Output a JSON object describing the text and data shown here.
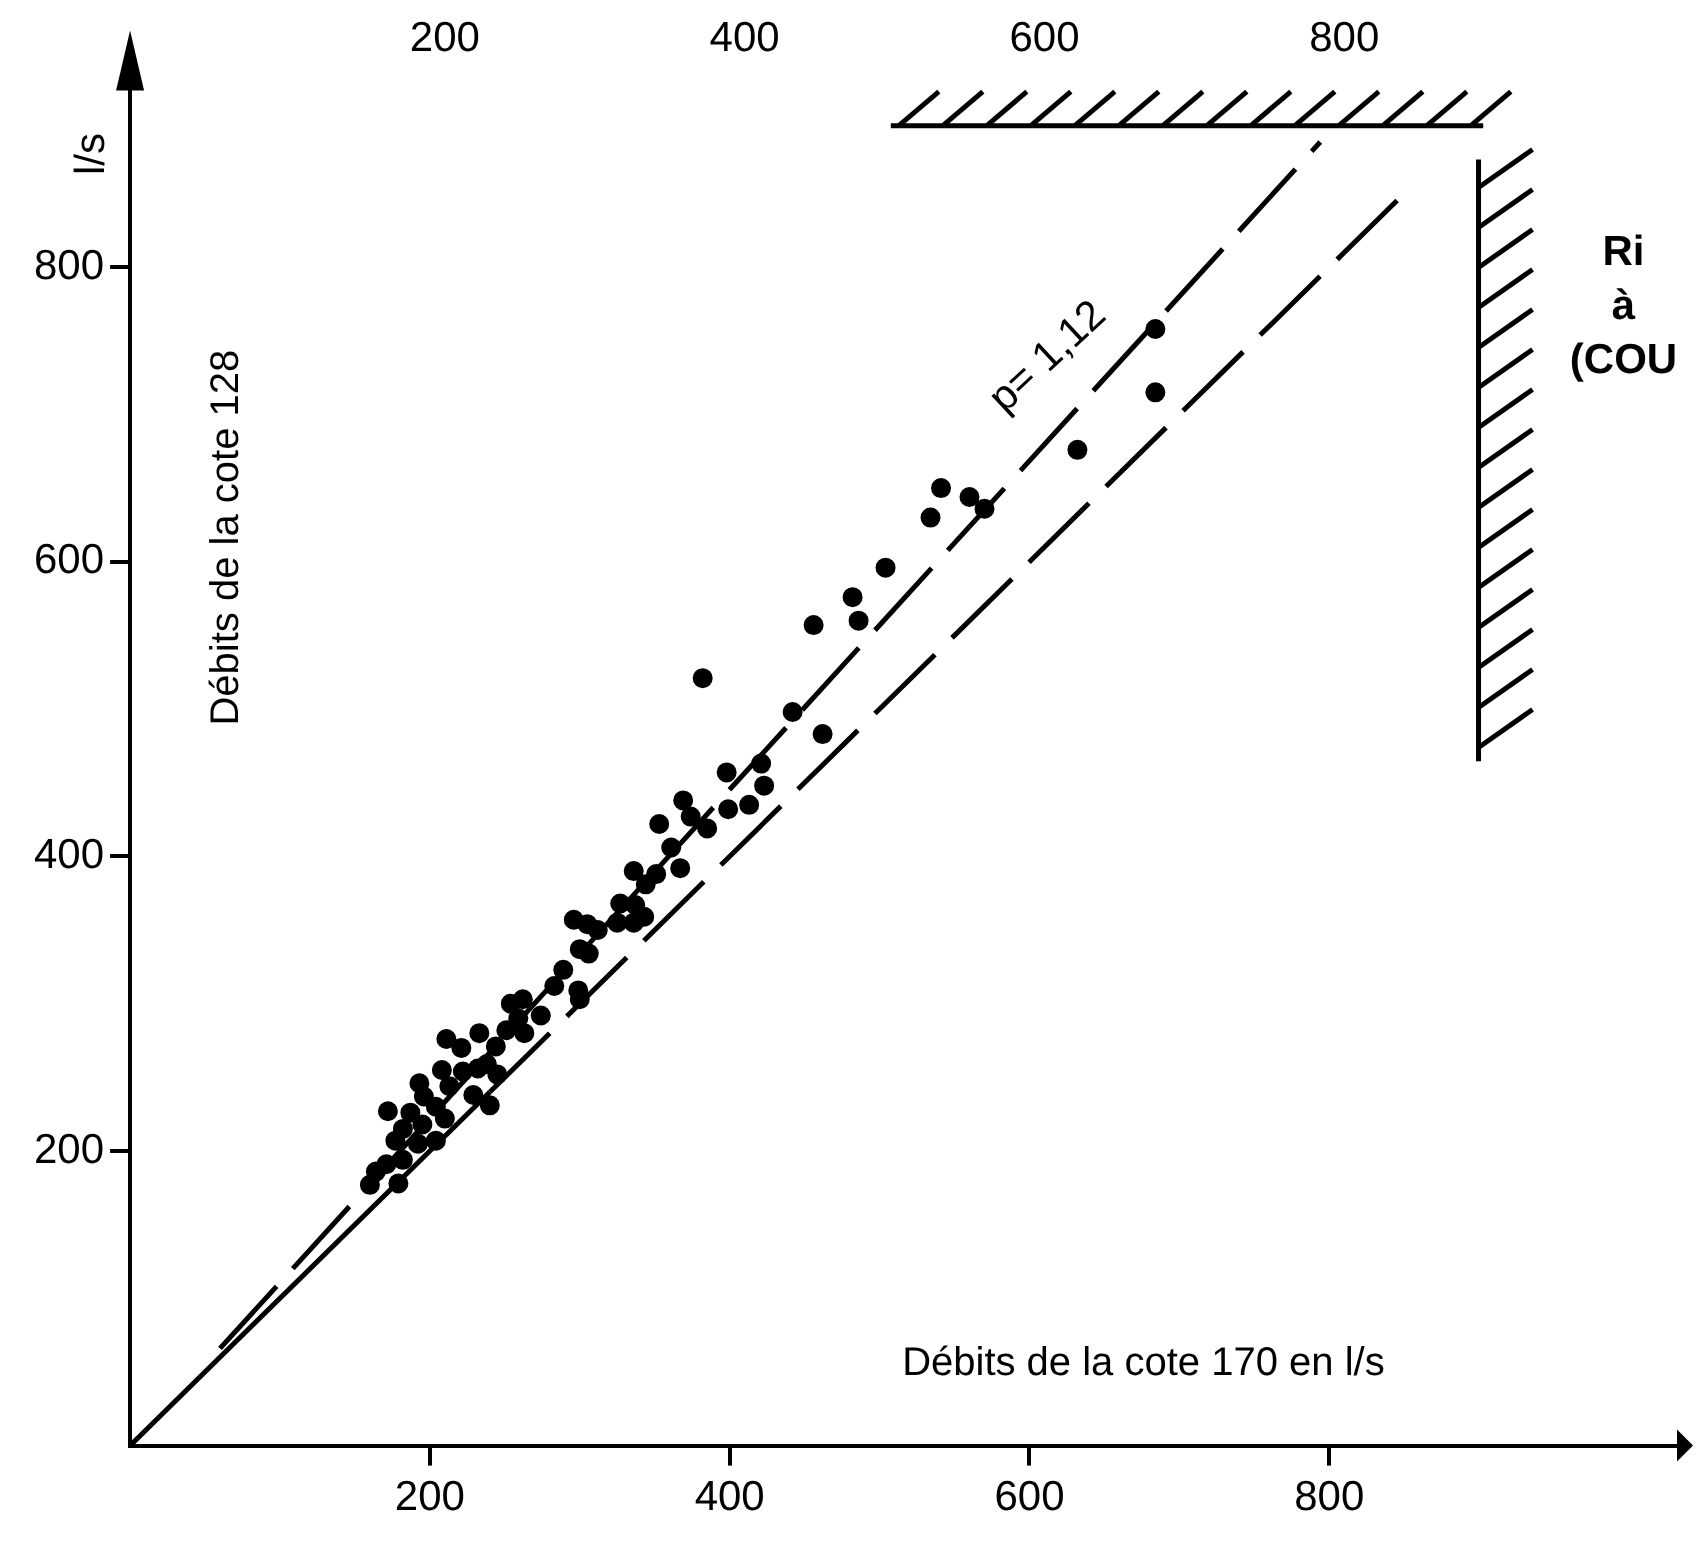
{
  "chart_data": {
    "type": "scatter",
    "xlabel": "Débits de la cote 170 en l/s",
    "ylabel": "Débits de la cote 128",
    "annotations": [
      "l/s",
      "p= 1,12",
      "Ri",
      "à",
      "(COU"
    ],
    "xlim": [
      0,
      1040
    ],
    "ylim": [
      0,
      920
    ],
    "xticks": [
      200,
      400,
      600,
      800
    ],
    "yticks": [
      200,
      400,
      600,
      800
    ],
    "x2lim": [
      -10,
      1030
    ],
    "x2ticks": [
      200,
      400,
      600,
      800
    ],
    "marker": "circle",
    "series": [
      {
        "type": "scatter",
        "color": "#000000",
        "x": [
          482,
          486,
          456,
          382,
          442,
          462,
          398,
          421,
          423,
          399,
          413,
          369,
          374,
          385,
          353,
          361,
          367,
          336,
          351,
          344,
          327,
          337,
          343,
          325,
          336,
          296,
          305,
          312,
          300,
          306,
          289,
          283,
          299,
          300,
          262,
          254,
          274,
          263,
          259,
          251,
          233,
          211,
          221,
          244,
          238,
          232,
          245,
          208,
          222,
          193,
          213,
          196,
          204,
          229,
          210,
          240,
          172,
          187,
          195,
          182,
          177,
          192,
          204,
          182,
          171,
          160,
          179,
          164,
          684,
          684,
          632,
          541,
          534,
          560,
          570,
          504
        ],
        "values": [
          576,
          560,
          557,
          521,
          498,
          483,
          457,
          463,
          448,
          432,
          435,
          438,
          427,
          419,
          422,
          406,
          392,
          390,
          388,
          381,
          368,
          367,
          359,
          355,
          355,
          357,
          354,
          350,
          337,
          334,
          323,
          312,
          309,
          303,
          303,
          300,
          292,
          280,
          290,
          282,
          280,
          276,
          270,
          271,
          259,
          256,
          252,
          255,
          254,
          246,
          244,
          237,
          230,
          238,
          222,
          231,
          227,
          226,
          218,
          215,
          207,
          205,
          207,
          194,
          191,
          177,
          178,
          186,
          758,
          715,
          676,
          650,
          630,
          644,
          636,
          596
        ]
      },
      {
        "type": "line",
        "color": "#000000",
        "x": [
          60,
          794
        ],
        "values": [
          66,
          885
        ],
        "line_style": "dashed",
        "marker": "none"
      },
      {
        "type": "line",
        "color": "#000000",
        "x": [
          0,
          240
        ],
        "values": [
          0,
          240
        ],
        "line_style": "solid",
        "marker": "none"
      },
      {
        "type": "line",
        "color": "#000000",
        "x": [
          240,
          850
        ],
        "values": [
          240,
          850
        ],
        "line_style": "dashed",
        "marker": "none"
      }
    ]
  }
}
